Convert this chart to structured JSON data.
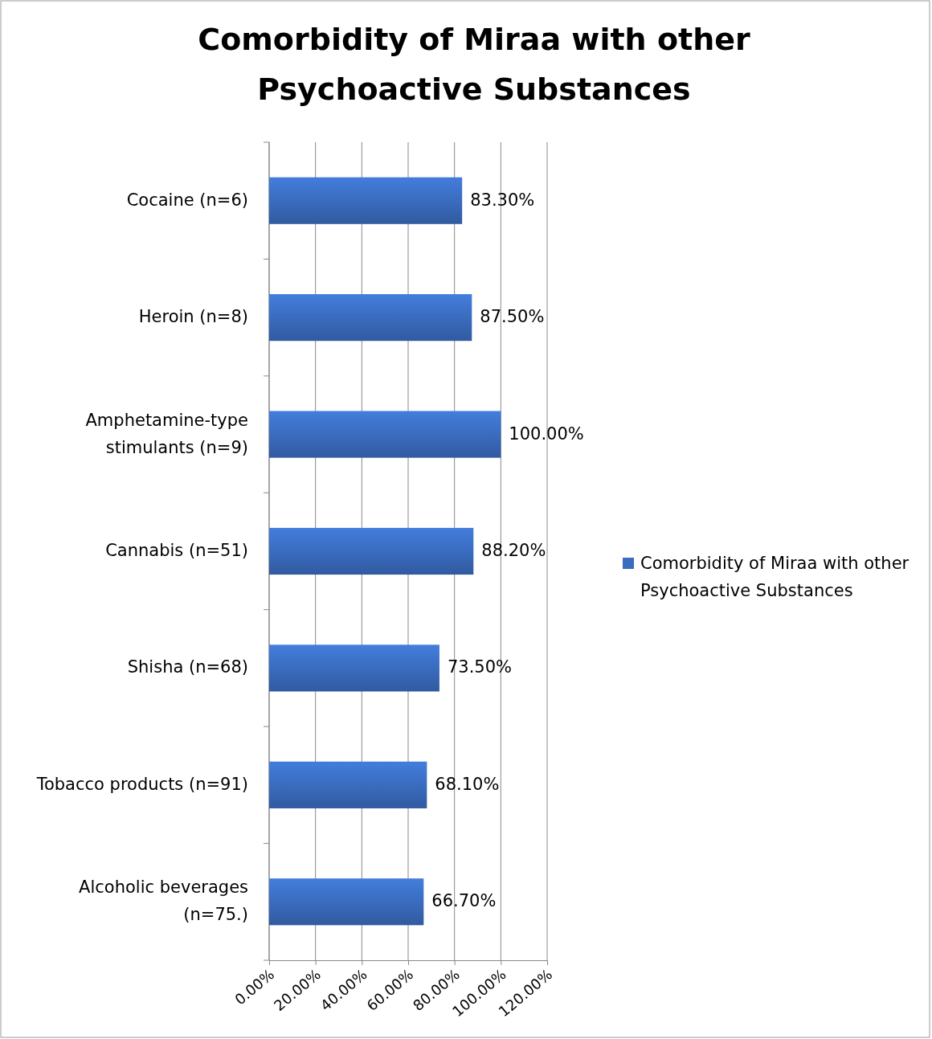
{
  "chart_data": {
    "type": "bar",
    "orientation": "horizontal",
    "title": "Comorbidity  of Miraa with other Psychoactive Substances",
    "categories": [
      "Cocaine (n=6)",
      "Heroin (n=8)",
      "Amphetamine-type stimulants (n=9)",
      "Cannabis (n=51)",
      "Shisha (n=68)",
      "Tobacco products (n=91)",
      "Alcoholic beverages (n=75.)"
    ],
    "series": [
      {
        "name": "Comorbidity  of Miraa with other Psychoactive Substances",
        "color": "#3a6cbf",
        "values": [
          83.3,
          87.5,
          100,
          88.2,
          73.5,
          68.1,
          66.7
        ],
        "value_labels": [
          "83.30%",
          "87.50%",
          "100.00%",
          "88.20%",
          "73.50%",
          "68.10%",
          "66.70%"
        ]
      }
    ],
    "xlim": [
      0,
      120
    ],
    "xticks": [
      {
        "value": 0,
        "label": "0.00%"
      },
      {
        "value": 20,
        "label": "20.00%"
      },
      {
        "value": 40,
        "label": "40.00%"
      },
      {
        "value": 60,
        "label": "60.00%"
      },
      {
        "value": 80,
        "label": "80.00%"
      },
      {
        "value": 100,
        "label": "100.00%"
      },
      {
        "value": 120,
        "label": "120.00%"
      }
    ],
    "grid": "x",
    "legend": "right"
  }
}
